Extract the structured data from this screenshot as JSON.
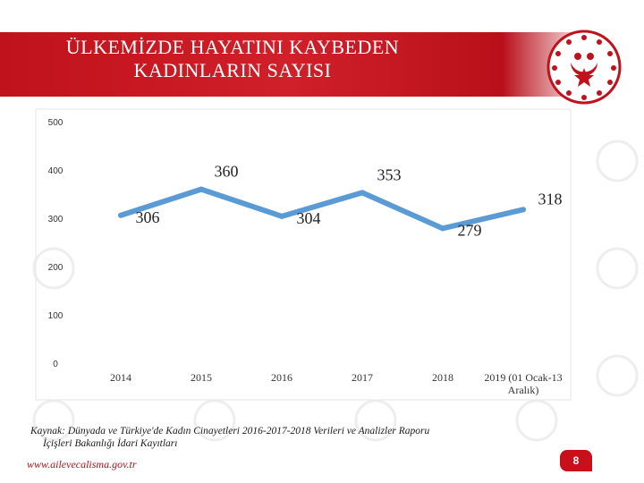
{
  "header": {
    "title": "ÜLKEMİZDE HAYATINI KAYBEDEN\nKADINLARIN SAYISI"
  },
  "chart_data": {
    "type": "line",
    "categories": [
      "2014",
      "2015",
      "2016",
      "2017",
      "2018",
      "2019 (01 Ocak-13\nAralık)"
    ],
    "values": [
      306,
      360,
      304,
      353,
      279,
      318
    ],
    "data_labels": [
      "306",
      "360",
      "304",
      "353",
      "279",
      "318"
    ],
    "y_ticks": [
      "0",
      "100",
      "200",
      "300",
      "400",
      "500"
    ],
    "ylim": [
      0,
      500
    ],
    "grid": false,
    "line_color": "#5b9bd5"
  },
  "footer": {
    "source_line1": "Kaynak: Dünyada ve Türkiye'de Kadın Cinayetleri 2016-2017-2018 Verileri ve Analizler Raporu",
    "source_line2": "İçişleri Bakanlığı İdari Kayıtları",
    "website": "www.ailevecalisma.gov.tr",
    "page_number": "8"
  },
  "colors": {
    "header_red": "#c0121c",
    "accent_red": "#c8101a"
  }
}
